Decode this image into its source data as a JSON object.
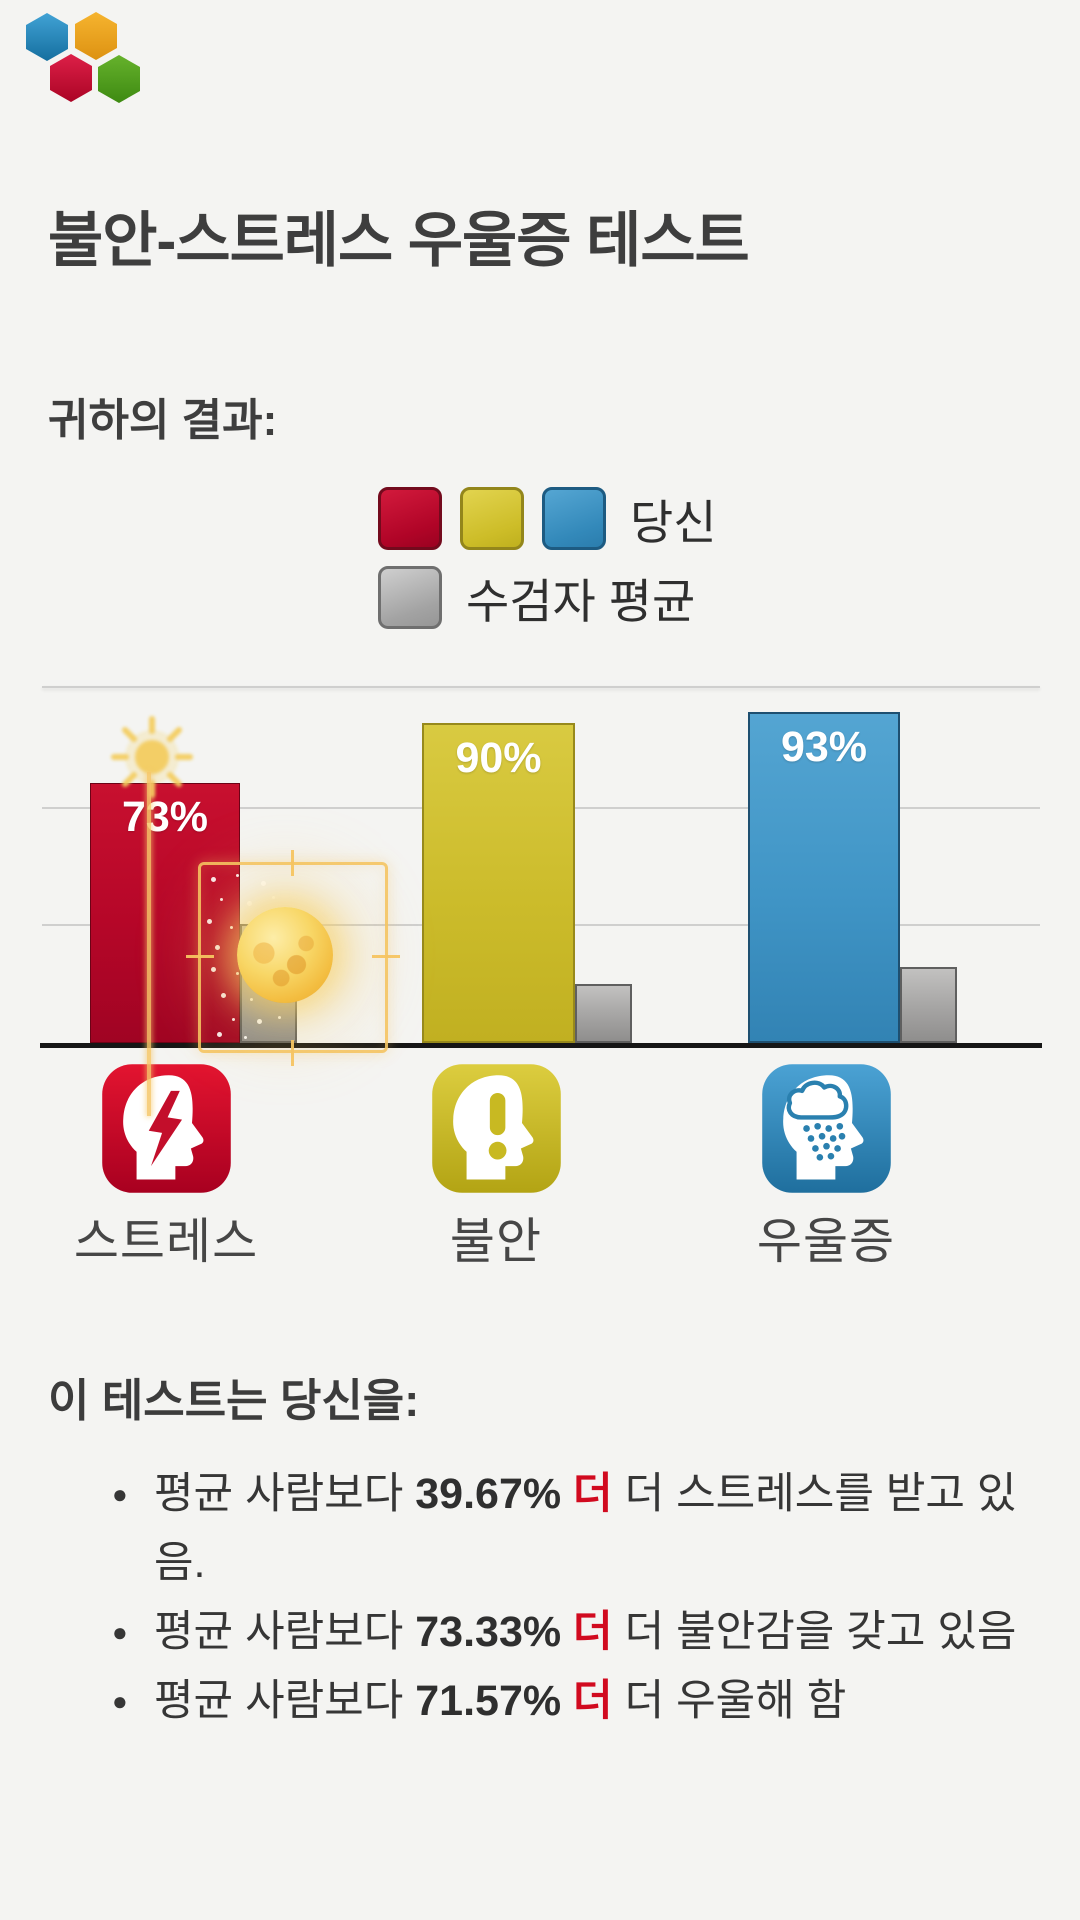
{
  "page": {
    "background": "#f4f4f2"
  },
  "logo": {
    "description": "four-hexagon logo",
    "colors": {
      "blue": "#2f96c8",
      "orange": "#f0a61e",
      "red": "#cf1238",
      "green": "#55a31e"
    }
  },
  "title": "불안-스트레스 우울증 테스트",
  "results_heading": "귀하의 결과:",
  "legend": {
    "you_label": "당신",
    "avg_label": "수검자 평균",
    "you_colors": [
      "#c41334",
      "#d0c02a",
      "#3e97c8"
    ],
    "avg_color": "#a3a3a3"
  },
  "chart_data": {
    "type": "bar",
    "categories": [
      "스트레스",
      "불안",
      "우울증"
    ],
    "series": [
      {
        "name": "당신",
        "values": [
          73,
          90,
          93
        ],
        "colors": [
          "#c41334",
          "#d0c02a",
          "#3e97c8"
        ]
      },
      {
        "name": "수검자 평균",
        "values": [
          33.33,
          16.67,
          21.43
        ],
        "color": "#a3a3a3"
      }
    ],
    "value_labels": [
      "73%",
      "90%",
      "93%"
    ],
    "ylim": [
      0,
      100
    ],
    "grid": true,
    "legend_position": "top"
  },
  "overlay": {
    "description": "day-night weather animation overlay",
    "accent": "#f5c462"
  },
  "summary": {
    "heading": "이 테스트는 당신을:",
    "bullets": [
      {
        "prefix": "평균 사람보다 ",
        "pct": "39.67%",
        "more": " 더",
        "rest": " 더 스트레스를 받고 있음."
      },
      {
        "prefix": "평균 사람보다 ",
        "pct": "73.33%",
        "more": " 더",
        "rest": " 더 불안감을 갖고 있음"
      },
      {
        "prefix": "평균 사람보다 ",
        "pct": "71.57%",
        "more": " 더",
        "rest": " 더 우울해 함"
      }
    ]
  }
}
